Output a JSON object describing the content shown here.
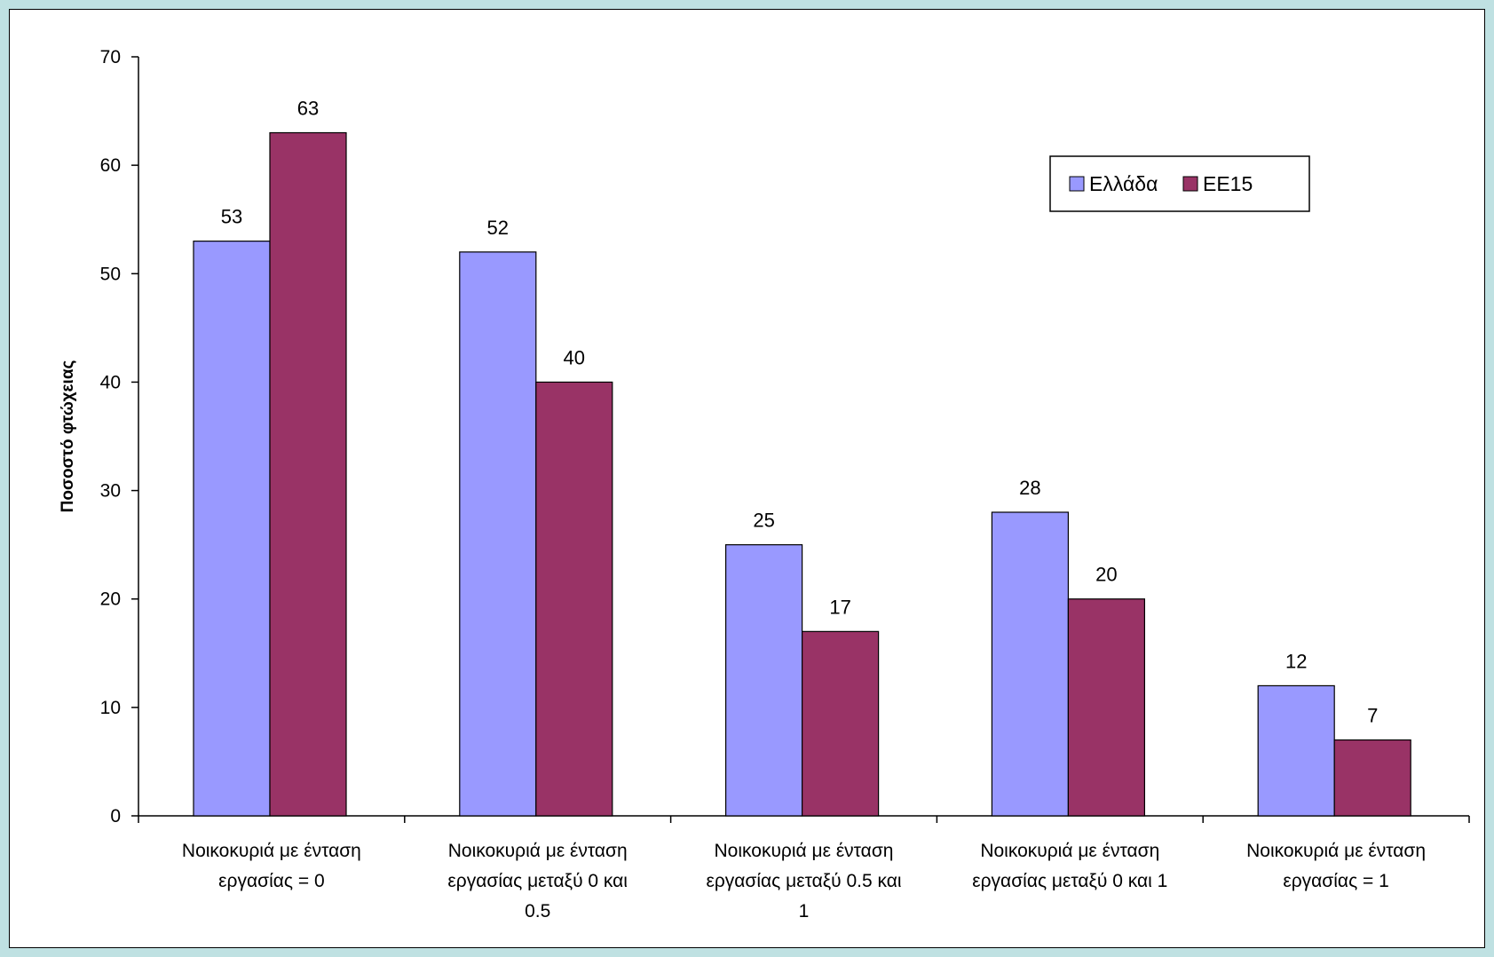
{
  "chart_data": {
    "type": "bar",
    "title": "",
    "xlabel": "",
    "ylabel": "Ποσοστό φτώχειας",
    "ylim": [
      0,
      70
    ],
    "yticks": [
      0,
      10,
      20,
      30,
      40,
      50,
      60,
      70
    ],
    "grid": false,
    "legend_position": "top-right",
    "categories": [
      [
        "Νοικοκυριά με ένταση",
        "εργασίας = 0"
      ],
      [
        "Νοικοκυριά με ένταση",
        "εργασίας μεταξύ 0 και",
        "0.5"
      ],
      [
        "Νοικοκυριά με ένταση",
        "εργασίας μεταξύ 0.5 και",
        "1"
      ],
      [
        "Νοικοκυριά με ένταση",
        "εργασίας μεταξύ 0 και 1"
      ],
      [
        "Νοικοκυριά με ένταση",
        "εργασίας = 1"
      ]
    ],
    "series": [
      {
        "name": "Ελλάδα",
        "color": "#9999ff",
        "values": [
          53,
          52,
          25,
          28,
          12
        ]
      },
      {
        "name": "ΕΕ15",
        "color": "#993366",
        "values": [
          63,
          40,
          17,
          20,
          7
        ]
      }
    ]
  }
}
